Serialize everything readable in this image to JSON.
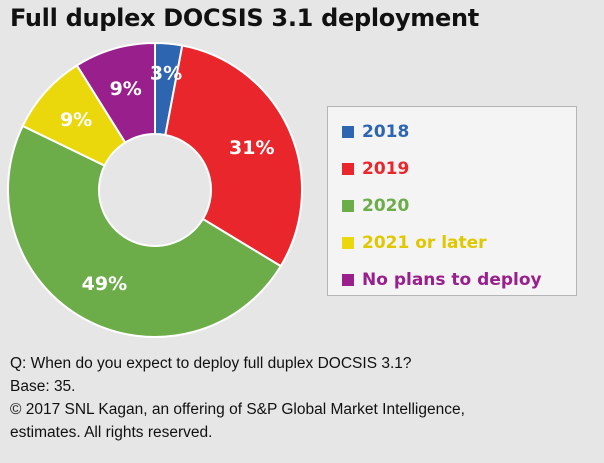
{
  "title": "Full duplex DOCSIS 3.1 deployment",
  "chart_data": {
    "type": "pie",
    "title": "Full duplex DOCSIS 3.1 deployment",
    "categories": [
      "2018",
      "2019",
      "2020",
      "2021 or later",
      "No plans to deploy"
    ],
    "values": [
      3,
      31,
      49,
      9,
      9
    ],
    "data_labels": [
      "3%",
      "31%",
      "49%",
      "9%",
      "9%"
    ],
    "colors": [
      "#2e65b1",
      "#e8262b",
      "#6cad4a",
      "#ead80c",
      "#981f8c"
    ],
    "legend_placement": "right",
    "donut": true
  },
  "footer": {
    "question": "Q: When do you expect to deploy full duplex DOCSIS 3.1?",
    "base": "Base: 35.",
    "copyright_line1": "© 2017 SNL Kagan, an offering of S&P Global Market Intelligence,",
    "copyright_line2": "estimates. All rights reserved."
  }
}
